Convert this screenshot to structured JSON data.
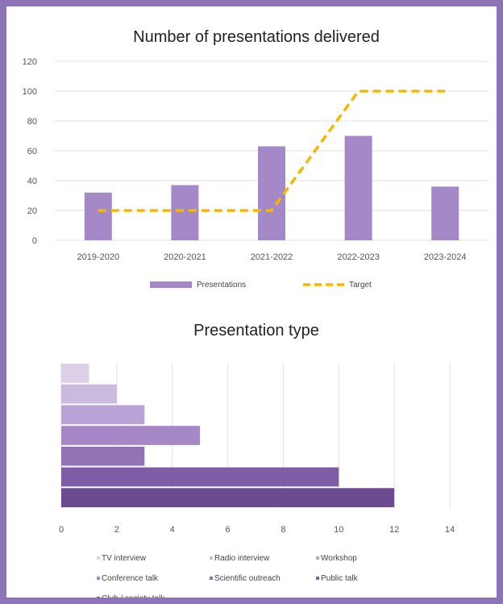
{
  "chart_data": [
    {
      "type": "bar",
      "title": "Number of presentations delivered",
      "categories": [
        "2019-2020",
        "2020-2021",
        "2021-2022",
        "2022-2023",
        "2023-2024"
      ],
      "series": [
        {
          "name": "Presentations",
          "type": "bar",
          "values": [
            32,
            37,
            63,
            70,
            36
          ],
          "color": "#a488c8"
        },
        {
          "name": "Target",
          "type": "line",
          "style": "dashed",
          "values": [
            20,
            20,
            20,
            100,
            100
          ],
          "color": "#f5b800"
        }
      ],
      "ylim": [
        0,
        120
      ],
      "yticks": [
        0,
        20,
        40,
        60,
        80,
        100,
        120
      ],
      "grid": true,
      "legend": "bottom"
    },
    {
      "type": "bar",
      "orientation": "horizontal",
      "title": "Presentation type",
      "categories": [
        "TV interview",
        "Radio interview",
        "Workshop",
        "Conference talk",
        "Scientific outreach",
        "Public talk",
        "Club / society talk"
      ],
      "values": [
        1,
        2,
        3,
        5,
        3,
        10,
        12
      ],
      "colors": [
        "#ddd1ea",
        "#cbbadf",
        "#b9a2d5",
        "#a688c8",
        "#9373b6",
        "#7f5da5",
        "#6c4a90"
      ],
      "xlim": [
        0,
        14
      ],
      "xticks": [
        0,
        2,
        4,
        6,
        8,
        10,
        12,
        14
      ],
      "grid": true,
      "legend": "bottom"
    }
  ]
}
